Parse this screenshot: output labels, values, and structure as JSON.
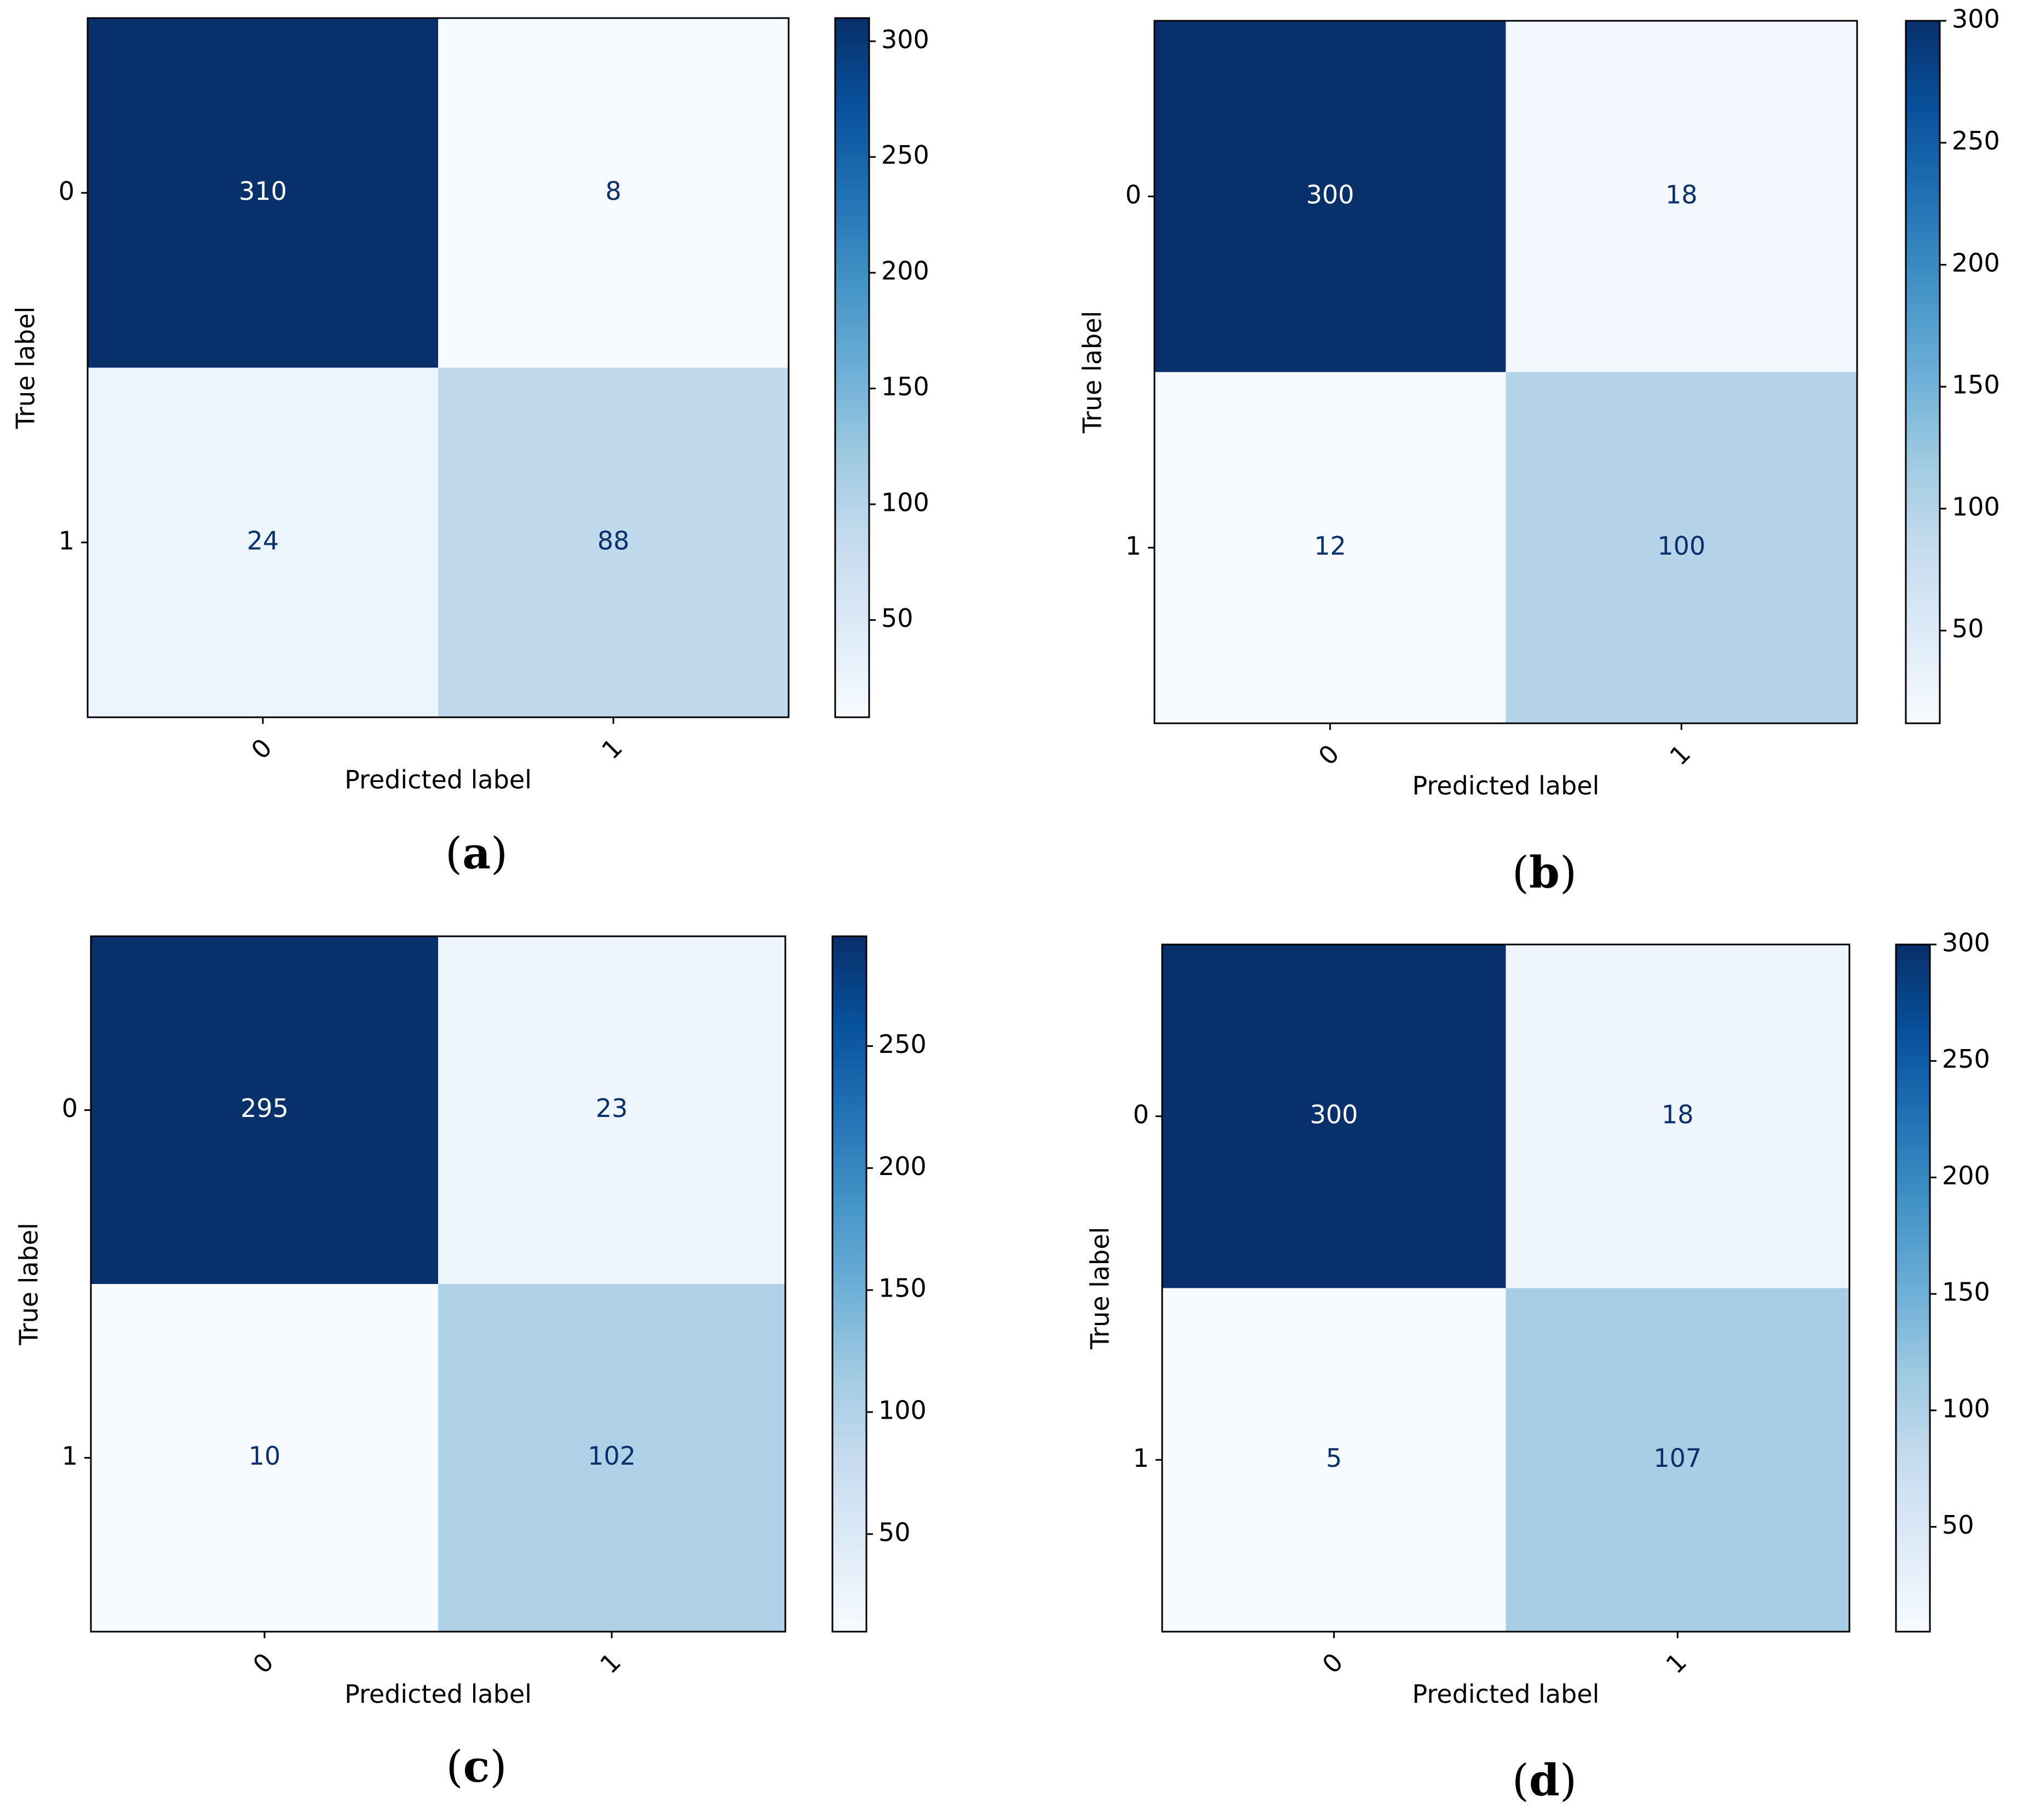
{
  "chart_data": [
    {
      "type": "heatmap",
      "panel": "(a)",
      "xlabel": "Predicted label",
      "ylabel": "True label",
      "x_categories": [
        "0",
        "1"
      ],
      "y_categories": [
        "0",
        "1"
      ],
      "values": [
        [
          310,
          8
        ],
        [
          24,
          88
        ]
      ],
      "colorbar": {
        "ticks": [
          "300",
          "250",
          "200",
          "150",
          "100",
          "50"
        ],
        "vmin": 8,
        "vmax": 310
      },
      "colormap": "Blues"
    },
    {
      "type": "heatmap",
      "panel": "(b)",
      "xlabel": "Predicted label",
      "ylabel": "True label",
      "x_categories": [
        "0",
        "1"
      ],
      "y_categories": [
        "0",
        "1"
      ],
      "values": [
        [
          300,
          18
        ],
        [
          12,
          100
        ]
      ],
      "colorbar": {
        "ticks": [
          "300",
          "250",
          "200",
          "150",
          "100",
          "50"
        ],
        "vmin": 12,
        "vmax": 300
      },
      "colormap": "Blues"
    },
    {
      "type": "heatmap",
      "panel": "(c)",
      "xlabel": "Predicted label",
      "ylabel": "True label",
      "x_categories": [
        "0",
        "1"
      ],
      "y_categories": [
        "0",
        "1"
      ],
      "values": [
        [
          295,
          23
        ],
        [
          10,
          102
        ]
      ],
      "colorbar": {
        "ticks": [
          "250",
          "200",
          "150",
          "100",
          "50"
        ],
        "vmin": 10,
        "vmax": 295
      },
      "colormap": "Blues"
    },
    {
      "type": "heatmap",
      "panel": "(d)",
      "xlabel": "Predicted label",
      "ylabel": "True label",
      "x_categories": [
        "0",
        "1"
      ],
      "y_categories": [
        "0",
        "1"
      ],
      "values": [
        [
          300,
          18
        ],
        [
          5,
          107
        ]
      ],
      "colorbar": {
        "ticks": [
          "300",
          "250",
          "200",
          "150",
          "100",
          "50"
        ],
        "vmin": 5,
        "vmax": 300
      },
      "colormap": "Blues"
    }
  ]
}
